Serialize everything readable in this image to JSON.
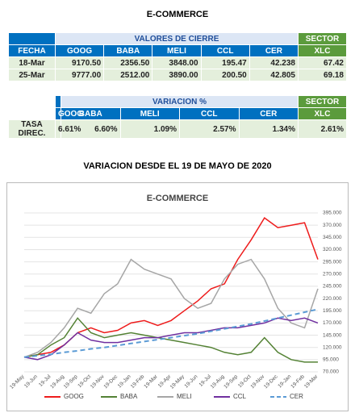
{
  "header": {
    "title": "E-COMMERCE"
  },
  "table1": {
    "group_header": "VALORES DE CIERRE",
    "sector_header": "SECTOR",
    "columns": [
      "FECHA",
      "GOOG",
      "BABA",
      "MELI",
      "CCL",
      "CER",
      "XLC"
    ],
    "rows": [
      [
        "18-Mar",
        "9170.50",
        "2356.50",
        "3848.00",
        "195.47",
        "42.238",
        "67.42"
      ],
      [
        "25-Mar",
        "9777.00",
        "2512.00",
        "3890.00",
        "200.50",
        "42.805",
        "69.18"
      ]
    ]
  },
  "table2": {
    "group_header": "VARIACION %",
    "sector_header": "SECTOR",
    "columns": [
      "GOOG",
      "BABA",
      "MELI",
      "CCL",
      "CER",
      "XLC"
    ],
    "rows": [
      [
        "TASA DIREC.",
        "6.61%",
        "6.60%",
        "1.09%",
        "2.57%",
        "1.34%",
        "2.61%"
      ]
    ]
  },
  "section_title": "VARIACION DESDE EL 19 DE MAYO DE 2020",
  "chart_data": {
    "type": "line",
    "title": "E-COMMERCE",
    "categories": [
      "19-May",
      "19-Jun",
      "19-Jul",
      "19-Aug",
      "19-Sep",
      "19-Oct",
      "19-Nov",
      "19-Dec",
      "19-Jan",
      "19-Feb",
      "19-Mar",
      "19-Apr",
      "19-May",
      "19-Jun",
      "19-Jul",
      "19-Aug",
      "19-Sep",
      "19-Oct",
      "19-Nov",
      "19-Dec",
      "19-Jan",
      "19-Feb",
      "19-Mar"
    ],
    "series": [
      {
        "name": "GOOG",
        "color": "#ee1c1c",
        "values": [
          100,
          105,
          110,
          125,
          150,
          160,
          150,
          155,
          170,
          175,
          165,
          175,
          195,
          215,
          240,
          250,
          300,
          340,
          385,
          365,
          370,
          375,
          300
        ]
      },
      {
        "name": "BABA",
        "color": "#548235",
        "values": [
          100,
          105,
          125,
          140,
          180,
          150,
          140,
          145,
          150,
          145,
          140,
          135,
          130,
          125,
          120,
          110,
          105,
          110,
          140,
          110,
          95,
          90,
          90
        ]
      },
      {
        "name": "MELI",
        "color": "#a6a6a6",
        "values": [
          100,
          110,
          130,
          160,
          200,
          190,
          230,
          250,
          300,
          280,
          270,
          260,
          220,
          200,
          210,
          260,
          290,
          300,
          260,
          200,
          170,
          160,
          240
        ]
      },
      {
        "name": "CCL",
        "color": "#7030a0",
        "values": [
          100,
          95,
          105,
          125,
          150,
          135,
          130,
          130,
          135,
          140,
          140,
          145,
          150,
          150,
          155,
          160,
          160,
          165,
          170,
          180,
          175,
          180,
          170
        ]
      },
      {
        "name": "CER",
        "color": "#5b9bd5",
        "dashed": true,
        "values": [
          100,
          103,
          106,
          110,
          113,
          117,
          120,
          124,
          128,
          132,
          136,
          140,
          144,
          148,
          153,
          158,
          163,
          168,
          174,
          180,
          186,
          192,
          198
        ]
      }
    ],
    "ylim": [
      70,
      395
    ],
    "yticks": [
      {
        "value": 70,
        "label": "70.000"
      },
      {
        "value": 95,
        "label": "95.000"
      },
      {
        "value": 120,
        "label": "120.000"
      },
      {
        "value": 145,
        "label": "145.000"
      },
      {
        "value": 170,
        "label": "170.000"
      },
      {
        "value": 195,
        "label": "195.000"
      },
      {
        "value": 220,
        "label": "220.000"
      },
      {
        "value": 245,
        "label": "245.000"
      },
      {
        "value": 270,
        "label": "270.000"
      },
      {
        "value": 295,
        "label": "295.000"
      },
      {
        "value": 320,
        "label": "320.000"
      },
      {
        "value": 345,
        "label": "345.000"
      },
      {
        "value": 370,
        "label": "370.000"
      },
      {
        "value": 395,
        "label": "395.000"
      }
    ],
    "grid": true
  }
}
